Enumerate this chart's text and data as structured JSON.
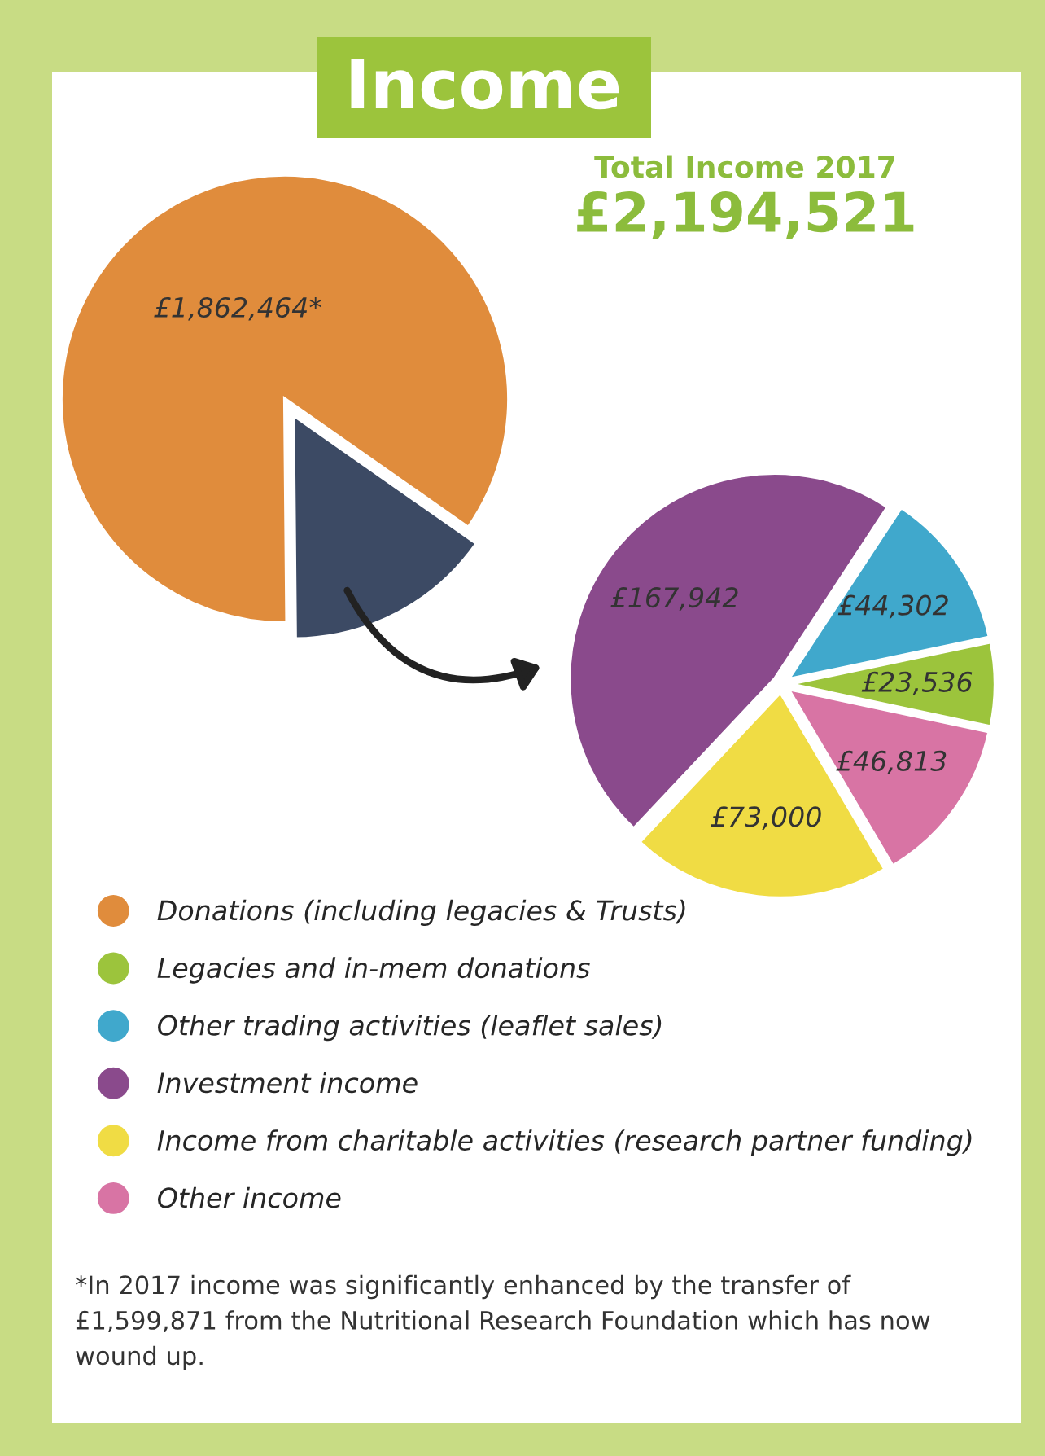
{
  "chart_data": [
    {
      "type": "pie",
      "title": "Income",
      "subtitle": "Total Income 2017",
      "annotations": [
        "£2,194,521"
      ],
      "categories": [
        "Donations (including legacies & Trusts)",
        null
      ],
      "values": [
        1862464,
        332057
      ],
      "colors": [
        "#e08c3c",
        "#3c4a64"
      ],
      "value_labels": [
        "£1,862,464*",
        null
      ]
    },
    {
      "type": "pie",
      "legend": "bottom left",
      "categories": [
        "Legacies and in-mem donations",
        "Other trading activities (leaflet sales)",
        "Investment income",
        "Income from charitable activities (research partner funding)",
        "Other income"
      ],
      "values": [
        23536,
        44302,
        167942,
        73000,
        46813
      ],
      "colors": [
        "#9cc43c",
        "#40a8cc",
        "#8a4a8c",
        "#f0dc44",
        "#d874a4"
      ],
      "value_labels": [
        "£23,536",
        "£44,302",
        "£167,942",
        "£73,000",
        "£46,813"
      ],
      "annotations": [
        "*In 2017 income was significantly enhanced by the transfer of £1,599,871 from the Nutritional Research Foundation which has now wound up."
      ]
    }
  ]
}
